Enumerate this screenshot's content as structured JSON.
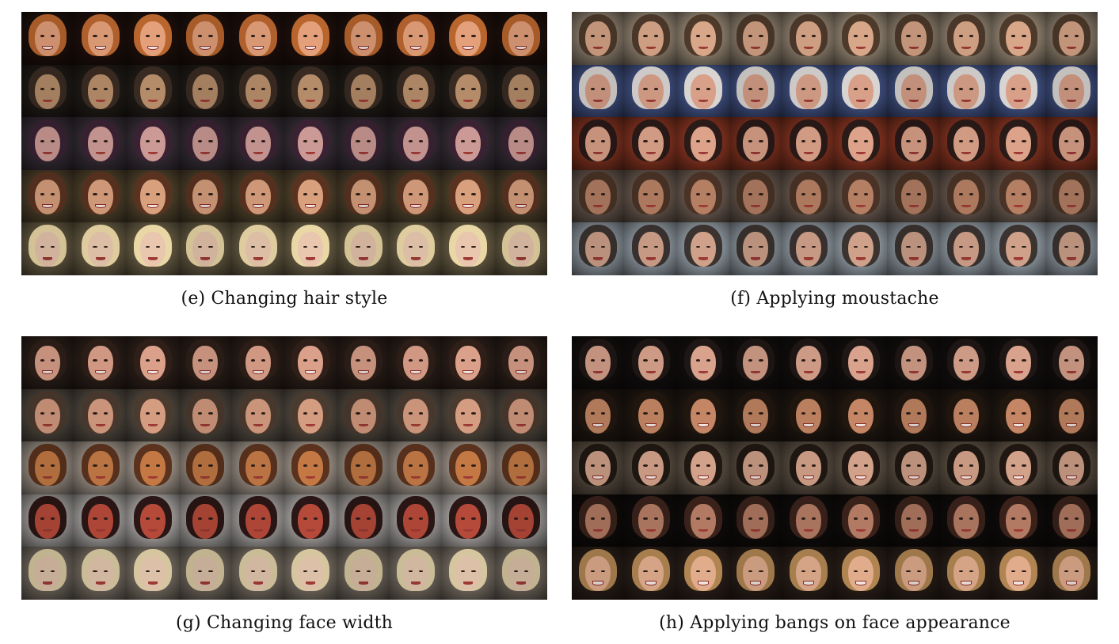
{
  "panels": [
    {
      "caption": "(e) Changing hair style",
      "rows": [
        {
          "bg": "#2a1610",
          "hair": "#b9652e",
          "skin": "#e4a07a",
          "smile": true
        },
        {
          "bg": "#2c2620",
          "hair": "#3a2b22",
          "skin": "#b58c6a",
          "smile": false
        },
        {
          "bg": "#4a3f4a",
          "hair": "#3a2233",
          "skin": "#cc9a96",
          "smile": false
        },
        {
          "bg": "#6d5a3c",
          "hair": "#5a3320",
          "skin": "#d9a07e",
          "smile": true
        },
        {
          "bg": "#8e7f5d",
          "hair": "#ead7a6",
          "skin": "#e8c7ae",
          "smile": false
        }
      ]
    },
    {
      "caption": "(f) Applying moustache",
      "rows": [
        {
          "bg": "#c9b59c",
          "hair": "#4e3a2b",
          "skin": "#d8a688",
          "smile": false
        },
        {
          "bg": "#5a70b5",
          "hair": "#d8d4d2",
          "skin": "#d8a088",
          "smile": false
        },
        {
          "bg": "#b5462c",
          "hair": "#2a1a18",
          "skin": "#dca28a",
          "smile": false
        },
        {
          "bg": "#8f7a6c",
          "hair": "#4a3326",
          "skin": "#b57f64",
          "smile": false
        },
        {
          "bg": "#c9d7e3",
          "hair": "#3b3330",
          "skin": "#cfa18a",
          "smile": false
        }
      ]
    },
    {
      "caption": "(g) Changing face width",
      "rows": [
        {
          "bg": "#3b2a22",
          "hair": "#2f1f18",
          "skin": "#dba08a",
          "smile": true
        },
        {
          "bg": "#6f6457",
          "hair": "#4b3a2e",
          "skin": "#d49c80",
          "smile": false
        },
        {
          "bg": "#d9cabb",
          "hair": "#5a321d",
          "skin": "#c47945",
          "smile": false
        },
        {
          "bg": "#e7e2df",
          "hair": "#2a1615",
          "skin": "#b64a3a",
          "smile": false
        },
        {
          "bg": "#9e9384",
          "hair": "#d6c6a0",
          "skin": "#dcc0a8",
          "smile": false
        }
      ]
    },
    {
      "caption": "(h) Applying bangs on face appearance",
      "rows": [
        {
          "bg": "#1a1414",
          "hair": "#1f1715",
          "skin": "#d8a28c",
          "smile": false
        },
        {
          "bg": "#2b2018",
          "hair": "#22170f",
          "skin": "#c48664",
          "smile": true
        },
        {
          "bg": "#7b6b5a",
          "hair": "#201712",
          "skin": "#d1a189",
          "smile": true
        },
        {
          "bg": "#15100f",
          "hair": "#3a221b",
          "skin": "#b27a62",
          "smile": false
        },
        {
          "bg": "#3a2a22",
          "hair": "#b08552",
          "skin": "#e0ac8c",
          "smile": true
        }
      ]
    }
  ]
}
